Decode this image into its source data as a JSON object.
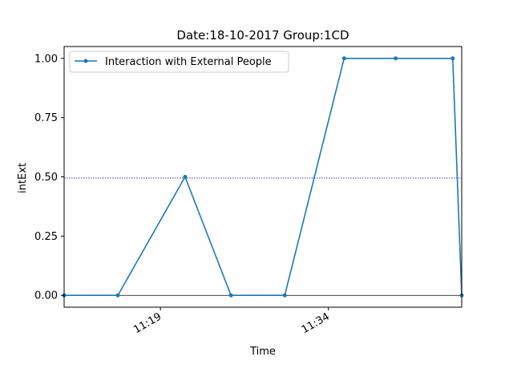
{
  "chart_data": {
    "type": "line",
    "title": "Date:18-10-2017  Group:1CD",
    "xlabel": "Time",
    "ylabel": "intExt",
    "x_ticks": [
      {
        "label": "11:19",
        "minutes": 19
      },
      {
        "label": "11:34",
        "minutes": 34
      }
    ],
    "xlim_minutes": [
      10.4,
      45.9
    ],
    "ylim": [
      -0.05,
      1.05
    ],
    "y_ticks": [
      0.0,
      0.25,
      0.5,
      0.75,
      1.0
    ],
    "y_tick_labels": [
      "0.00",
      "0.25",
      "0.50",
      "0.75",
      "1.00"
    ],
    "series": [
      {
        "name": "Interaction with External People",
        "color": "#1f77b4",
        "x_minutes": [
          10.4,
          15.2,
          21.2,
          25.3,
          30.1,
          35.4,
          40.0,
          45.1,
          45.9
        ],
        "values": [
          0,
          0,
          0.5,
          0,
          0,
          1,
          1,
          1,
          0
        ]
      }
    ],
    "reference_lines": [
      {
        "y": 0.495,
        "color": "#00008b",
        "style": "dotted"
      },
      {
        "y": 0.0,
        "color": "#000000",
        "style": "solid"
      }
    ],
    "legend_position": "top-left",
    "grid": false
  }
}
